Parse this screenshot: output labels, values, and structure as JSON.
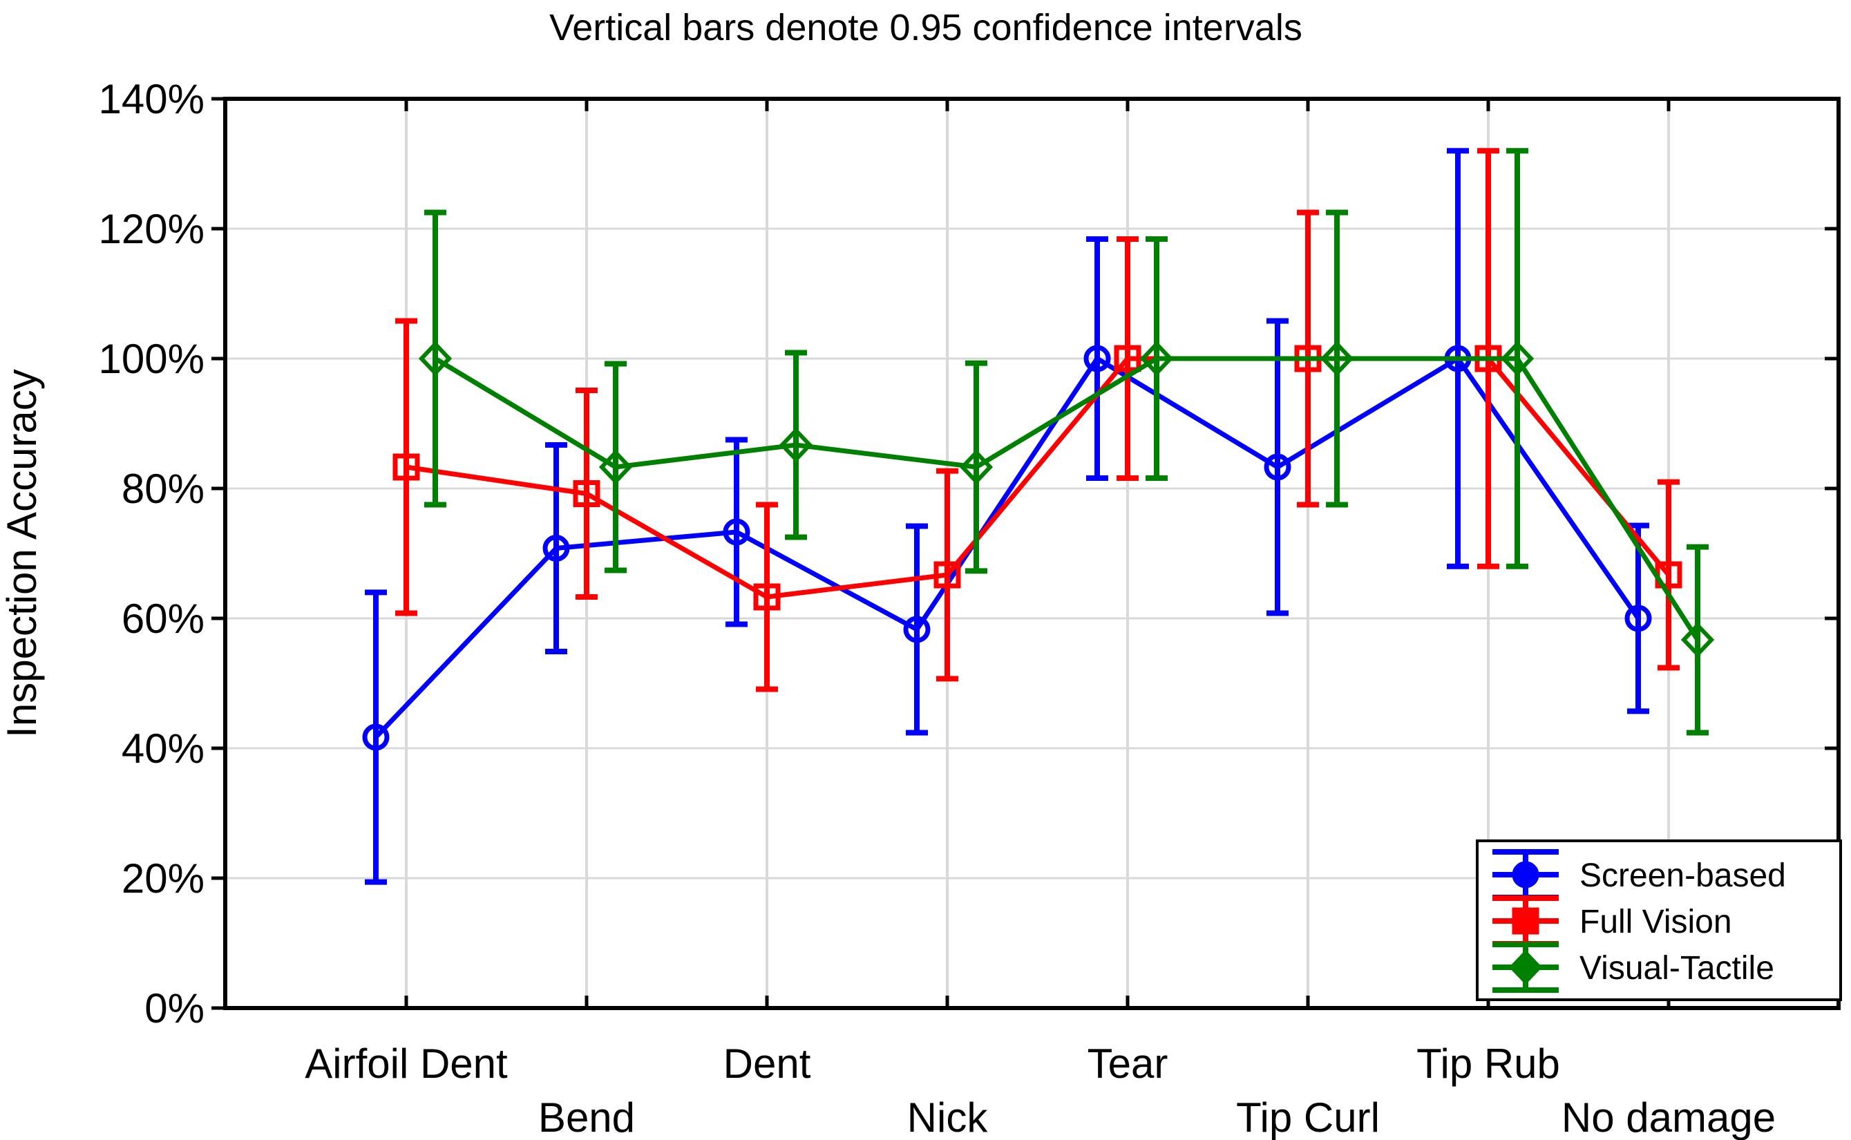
{
  "title": "Vertical bars denote 0.95 confidence intervals",
  "colors": {
    "background": "#ffffff",
    "grid": "#d9d9d9",
    "axis": "#000000",
    "screen_based": "#0000ff",
    "full_vision": "#ff0000",
    "visual_tactile": "#008000"
  },
  "chart_data": {
    "type": "line",
    "title": "Vertical bars denote 0.95 confidence intervals",
    "xlabel": "",
    "ylabel": "Inspection Accuracy",
    "ylim": [
      0,
      140
    ],
    "y_tick_step": 20,
    "y_tick_labels": [
      "0%",
      "20%",
      "40%",
      "60%",
      "80%",
      "100%",
      "120%",
      "140%"
    ],
    "grid": "both",
    "error_bars": "0.95 confidence intervals",
    "legend_position": "bottom-right",
    "categories": [
      "Airfoil Dent",
      "Bend",
      "Dent",
      "Nick",
      "Tear",
      "Tip Curl",
      "Tip Rub",
      "No damage"
    ],
    "category_label_rows": [
      1,
      2,
      1,
      2,
      1,
      2,
      1,
      2
    ],
    "series": [
      {
        "name": "Screen-based",
        "marker": "circle",
        "color": "#0000ff",
        "values": [
          41.7,
          70.8,
          73.3,
          58.3,
          100,
          83.3,
          100,
          60
        ],
        "ci_low": [
          19.4,
          54.9,
          59.1,
          42.4,
          81.6,
          60.8,
          68,
          45.7
        ],
        "ci_high": [
          64.0,
          86.7,
          87.5,
          74.2,
          118.4,
          105.8,
          132,
          74.3
        ]
      },
      {
        "name": "Full Vision",
        "marker": "square",
        "color": "#ff0000",
        "values": [
          83.3,
          79.2,
          63.3,
          66.7,
          100,
          100,
          100,
          66.7
        ],
        "ci_low": [
          60.8,
          63.3,
          49.1,
          50.7,
          81.6,
          77.5,
          68,
          52.4
        ],
        "ci_high": [
          105.8,
          95.1,
          77.5,
          82.7,
          118.4,
          122.5,
          132,
          81.0
        ]
      },
      {
        "name": "Visual-Tactile",
        "marker": "diamond",
        "color": "#008000",
        "values": [
          100,
          83.3,
          86.7,
          83.3,
          100,
          100,
          100,
          56.7
        ],
        "ci_low": [
          77.5,
          67.4,
          72.5,
          67.3,
          81.6,
          77.5,
          68,
          42.4
        ],
        "ci_high": [
          122.5,
          99.2,
          100.9,
          99.3,
          118.4,
          122.5,
          132,
          71.0
        ]
      }
    ]
  }
}
